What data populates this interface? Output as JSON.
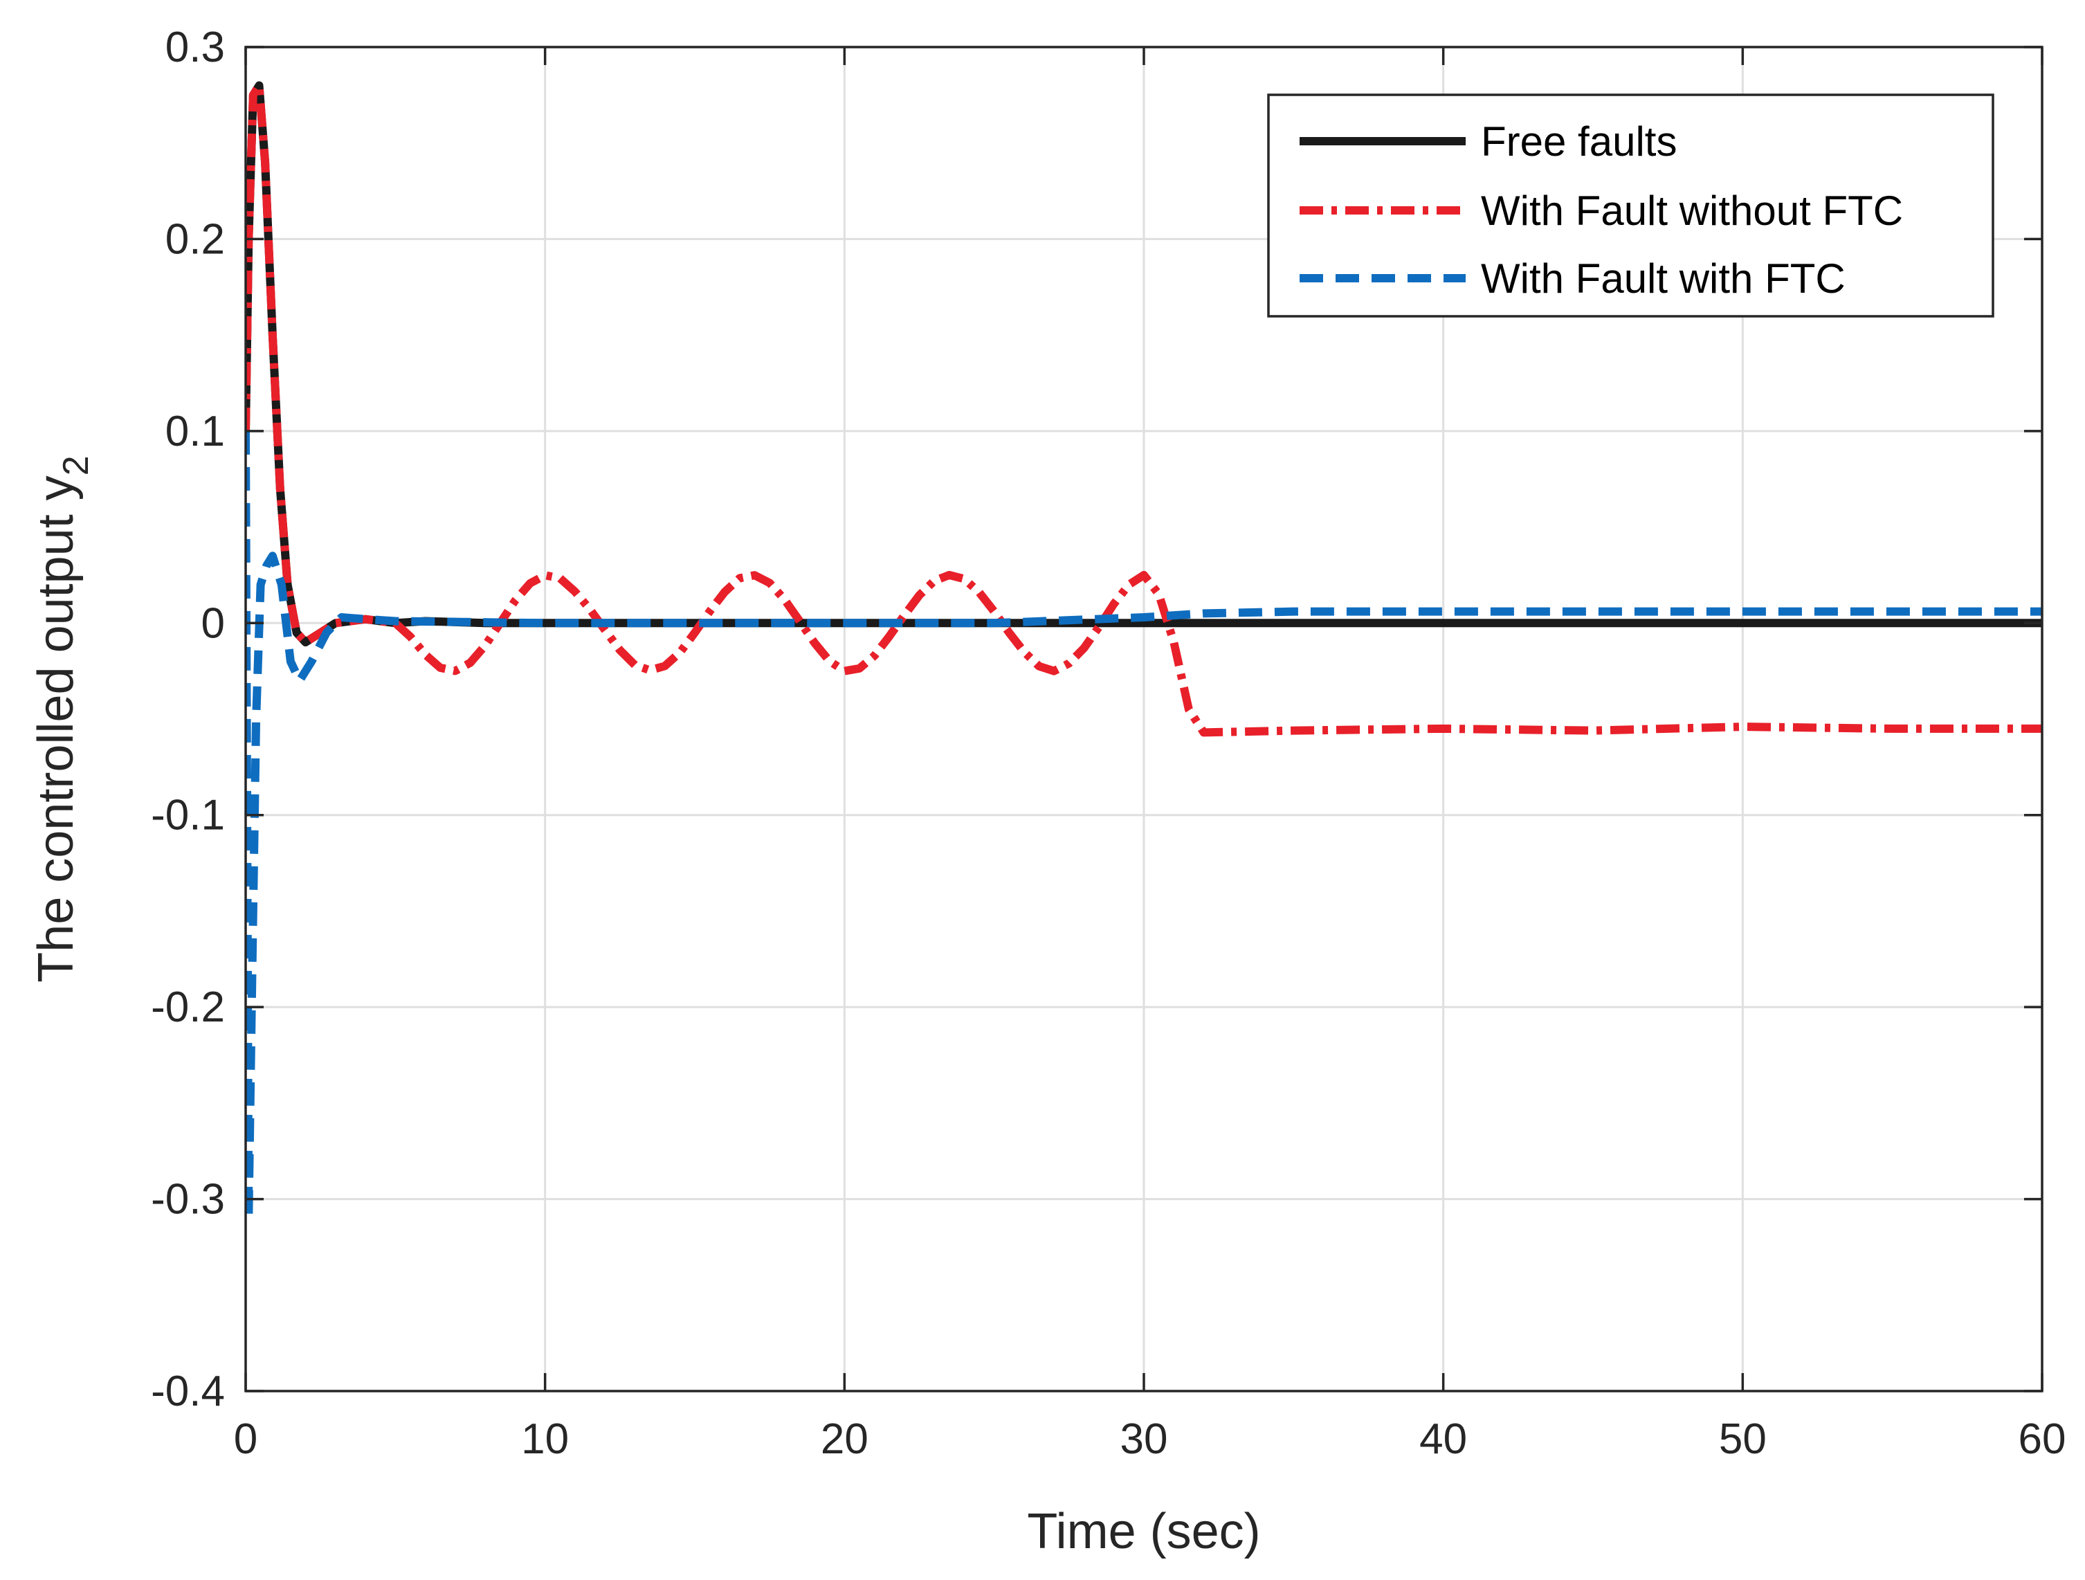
{
  "chart_data": {
    "type": "line",
    "title": "",
    "xlabel": "Time  (sec)",
    "ylabel": "The controlled output  y",
    "ylabel_subscript": "2",
    "xlim": [
      0,
      60
    ],
    "ylim": [
      -0.4,
      0.3
    ],
    "xticks": [
      0,
      10,
      20,
      30,
      40,
      50,
      60
    ],
    "xtick_labels": [
      "0",
      "10",
      "20",
      "30",
      "40",
      "50",
      "60"
    ],
    "yticks": [
      -0.4,
      -0.3,
      -0.2,
      -0.1,
      0,
      0.1,
      0.2,
      0.3
    ],
    "ytick_labels": [
      "-0.4",
      "-0.3",
      "-0.2",
      "-0.1",
      "0",
      "0.1",
      "0.2",
      "0.3"
    ],
    "grid": true,
    "legend_position": "top-right",
    "series": [
      {
        "name": "Free faults",
        "color": "#1a1a1a",
        "line_style": "solid",
        "x": [
          0,
          0.1,
          0.25,
          0.45,
          0.65,
          0.9,
          1.15,
          1.4,
          1.7,
          2.0,
          2.5,
          3.0,
          4.0,
          5.0,
          6.0,
          8.0,
          10.0,
          15.0,
          20.0,
          25.0,
          30.0,
          35.0,
          40.0,
          45.0,
          50.0,
          55.0,
          60.0
        ],
        "y": [
          0.1,
          0.2,
          0.275,
          0.28,
          0.24,
          0.15,
          0.07,
          0.02,
          -0.005,
          -0.01,
          -0.005,
          0.0,
          0.002,
          0.0,
          0.001,
          0.0,
          0.0,
          0.0,
          0.0,
          0.0,
          0.0,
          0.0,
          0.0,
          0.0,
          0.0,
          0.0,
          0.0
        ]
      },
      {
        "name": "With Fault without FTC",
        "color": "#e8202a",
        "line_style": "dash-dot",
        "x": [
          0,
          0.1,
          0.25,
          0.45,
          0.65,
          0.9,
          1.15,
          1.4,
          1.7,
          2.0,
          2.5,
          3.0,
          4.0,
          5.0,
          5.0,
          5.5,
          6.0,
          6.5,
          7.0,
          7.5,
          8.0,
          8.5,
          9.0,
          9.5,
          10.0,
          10.5,
          11.0,
          11.5,
          12.0,
          12.5,
          13.0,
          13.5,
          14.0,
          14.5,
          15.0,
          15.5,
          16.0,
          16.5,
          17.0,
          17.5,
          18.0,
          18.5,
          19.0,
          19.5,
          20.0,
          20.5,
          21.0,
          21.5,
          22.0,
          22.5,
          23.0,
          23.5,
          24.0,
          24.5,
          25.0,
          25.5,
          26.0,
          26.5,
          27.0,
          27.5,
          28.0,
          28.5,
          29.0,
          29.5,
          30.0,
          30.5,
          31.0,
          31.5,
          32.0,
          35.0,
          40.0,
          45.0,
          50.0,
          55.0,
          60.0
        ],
        "y": [
          0.1,
          0.2,
          0.275,
          0.28,
          0.24,
          0.15,
          0.07,
          0.02,
          -0.005,
          -0.01,
          -0.005,
          0.0,
          0.002,
          0.0,
          0.0,
          -0.0071,
          -0.0164,
          -0.0233,
          -0.0249,
          -0.0207,
          -0.0117,
          0.0,
          0.0117,
          0.0207,
          0.0249,
          0.0233,
          0.0164,
          0.0071,
          -0.0036,
          -0.0141,
          -0.0219,
          -0.0246,
          -0.0224,
          -0.0154,
          -0.005,
          0.0061,
          0.0162,
          0.0234,
          0.0249,
          0.0209,
          0.0122,
          0.0011,
          -0.0103,
          -0.0198,
          -0.025,
          -0.0236,
          -0.017,
          -0.0069,
          0.0041,
          0.0145,
          0.022,
          0.025,
          0.023,
          0.016,
          0.006,
          -0.005,
          -0.015,
          -0.0225,
          -0.025,
          -0.021,
          -0.013,
          -0.002,
          0.01,
          0.02,
          0.025,
          0.015,
          -0.01,
          -0.045,
          -0.057,
          -0.056,
          -0.055,
          -0.056,
          -0.054,
          -0.055,
          -0.055
        ]
      },
      {
        "name": "With Fault with FTC",
        "color": "#0f6dbf",
        "line_style": "dashed",
        "x": [
          0,
          0.1,
          0.2,
          0.35,
          0.5,
          0.7,
          0.9,
          1.2,
          1.5,
          1.8,
          2.2,
          2.7,
          3.2,
          4.0,
          5.0,
          10.0,
          15.0,
          20.0,
          25.0,
          30.0,
          32.0,
          35.0,
          40.0,
          45.0,
          50.0,
          55.0,
          60.0
        ],
        "y": [
          0.1,
          -0.31,
          -0.2,
          -0.05,
          0.02,
          0.03,
          0.035,
          0.02,
          -0.02,
          -0.03,
          -0.02,
          -0.005,
          0.003,
          0.002,
          0.001,
          0.0,
          0.0,
          0.0,
          0.0,
          0.003,
          0.005,
          0.006,
          0.006,
          0.006,
          0.006,
          0.006,
          0.006
        ]
      }
    ]
  }
}
